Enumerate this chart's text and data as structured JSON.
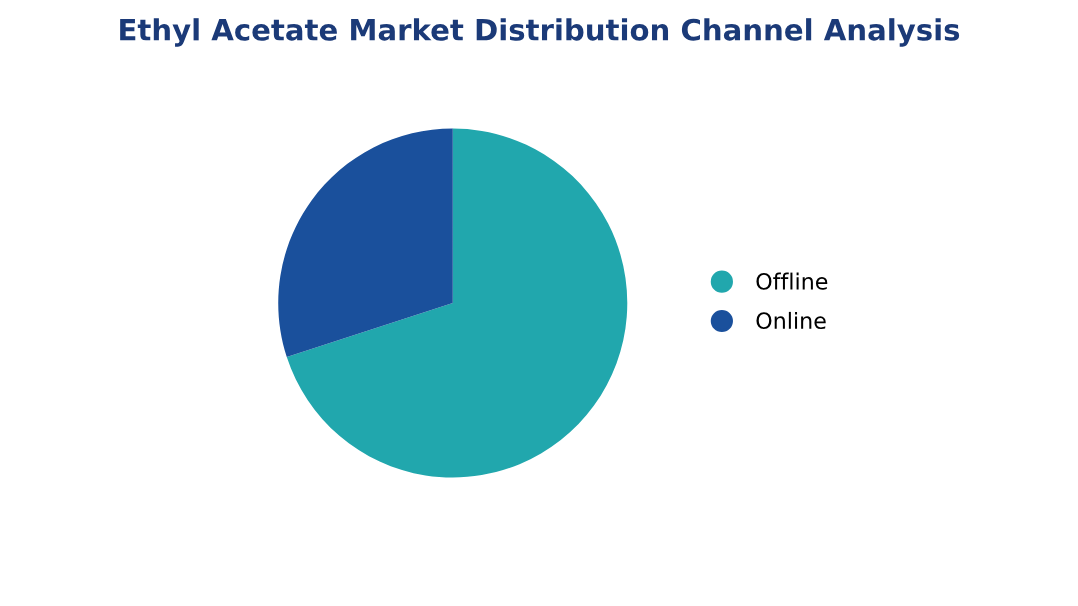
{
  "chart_data": {
    "type": "pie",
    "title": "Ethyl Acetate Market Distribution Channel Analysis",
    "categories": [
      "Offline",
      "Online"
    ],
    "values": [
      70,
      30
    ],
    "colors": [
      "#21a7ad",
      "#1a509c"
    ],
    "legend": "right"
  }
}
